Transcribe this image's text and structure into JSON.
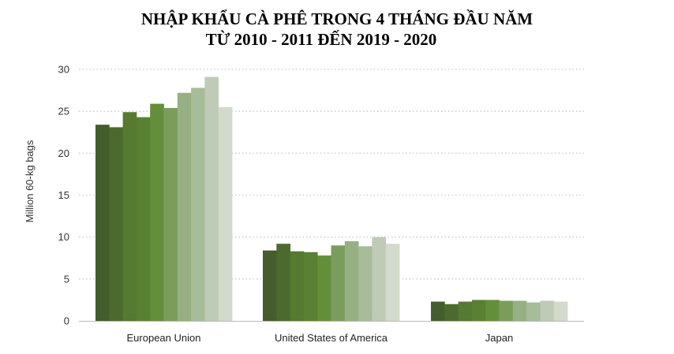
{
  "chart_data": {
    "type": "bar",
    "title_lines": [
      "NHẬP KHẨU CÀ PHÊ TRONG 4 THÁNG ĐẦU NĂM",
      "TỪ 2010 - 2011 ĐẾN 2019 - 2020"
    ],
    "xlabel": "",
    "ylabel": "Million 60-kg bags",
    "ylim": [
      0,
      30
    ],
    "yticks": [
      0,
      5,
      10,
      15,
      20,
      25,
      30
    ],
    "grid": true,
    "legend": "none",
    "categories": [
      "European Union",
      "United States of America",
      "Japan"
    ],
    "series": [
      {
        "color": "#435d2c",
        "values": [
          23.4,
          8.4,
          2.3
        ]
      },
      {
        "color": "#4b6b2e",
        "values": [
          23.1,
          9.2,
          2.0
        ]
      },
      {
        "color": "#557a30",
        "values": [
          24.9,
          8.3,
          2.3
        ]
      },
      {
        "color": "#5a8034",
        "values": [
          24.3,
          8.2,
          2.5
        ]
      },
      {
        "color": "#648f3a",
        "values": [
          25.9,
          7.8,
          2.5
        ]
      },
      {
        "color": "#7b9d5c",
        "values": [
          25.4,
          9.0,
          2.4
        ]
      },
      {
        "color": "#96b083",
        "values": [
          27.2,
          9.5,
          2.4
        ]
      },
      {
        "color": "#a7bc98",
        "values": [
          27.8,
          8.9,
          2.2
        ]
      },
      {
        "color": "#bfcbb6",
        "values": [
          29.1,
          10.0,
          2.4
        ]
      },
      {
        "color": "#d2dacb",
        "values": [
          25.5,
          9.2,
          2.3
        ]
      }
    ]
  }
}
